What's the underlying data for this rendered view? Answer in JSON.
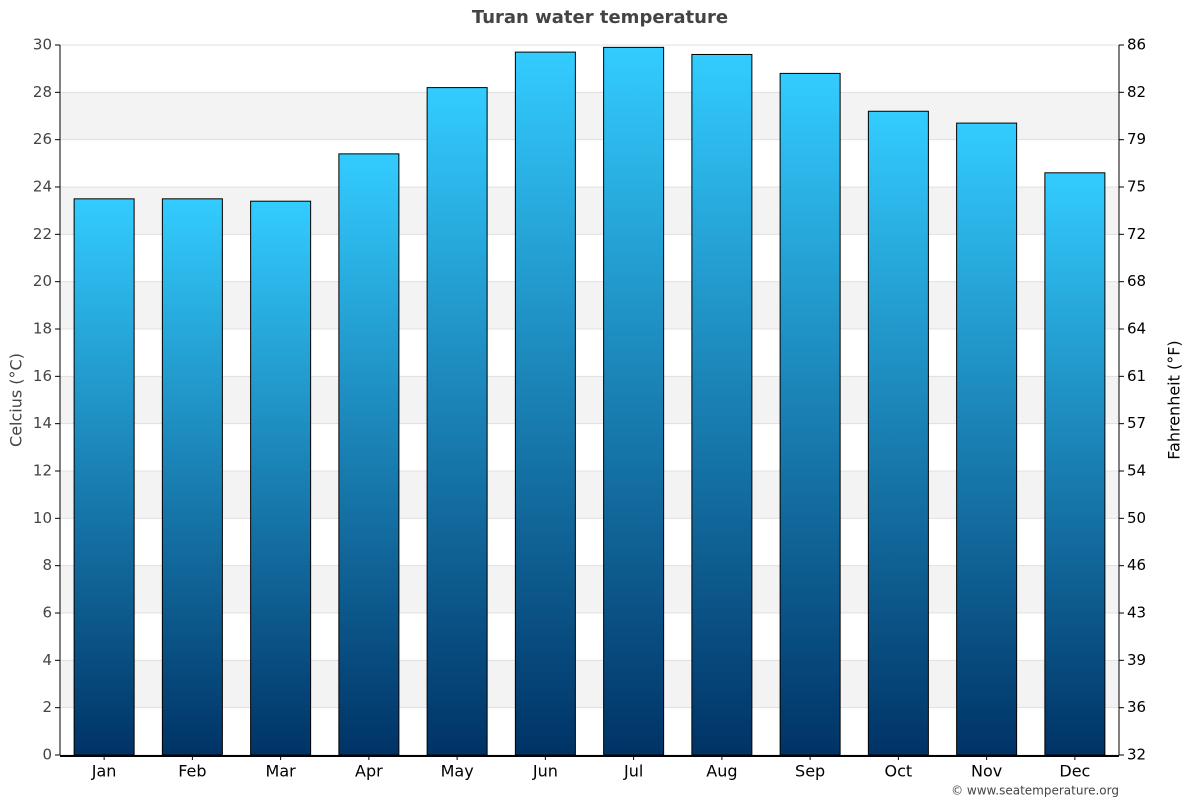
{
  "chart_data": {
    "type": "bar",
    "title": "Turan water temperature",
    "ylabel": "Celcius (°C)",
    "y2label": "Fahrenheit (°F)",
    "footer": "© www.seatemperature.org",
    "categories": [
      "Jan",
      "Feb",
      "Mar",
      "Apr",
      "May",
      "Jun",
      "Jul",
      "Aug",
      "Sep",
      "Oct",
      "Nov",
      "Dec"
    ],
    "values": [
      23.5,
      23.5,
      23.4,
      25.4,
      28.2,
      29.7,
      29.9,
      29.6,
      28.8,
      27.2,
      26.7,
      24.6
    ],
    "color": [
      "#33ccff",
      "#003366"
    ],
    "ylim": [
      0,
      30
    ],
    "yticks": [
      0,
      2,
      4,
      6,
      8,
      10,
      12,
      14,
      16,
      18,
      20,
      22,
      24,
      26,
      28,
      30
    ],
    "y2lim": [
      32,
      86
    ],
    "y2ticks": [
      32,
      {
        "value": 35.6,
        "label": "36"
      },
      {
        "value": 39.2,
        "label": "39"
      },
      {
        "value": 42.8,
        "label": "43"
      },
      {
        "value": 46.4,
        "label": "46"
      },
      50,
      {
        "value": 53.6,
        "label": "54"
      },
      {
        "value": 57.2,
        "label": "57"
      },
      {
        "value": 60.8,
        "label": "61"
      },
      {
        "value": 64.4,
        "label": "64"
      },
      68,
      {
        "value": 71.6,
        "label": "72"
      },
      {
        "value": 75.2,
        "label": "75"
      },
      {
        "value": 78.8,
        "label": "79"
      },
      {
        "value": 82.4,
        "label": "82"
      },
      86
    ],
    "grid": true
  }
}
